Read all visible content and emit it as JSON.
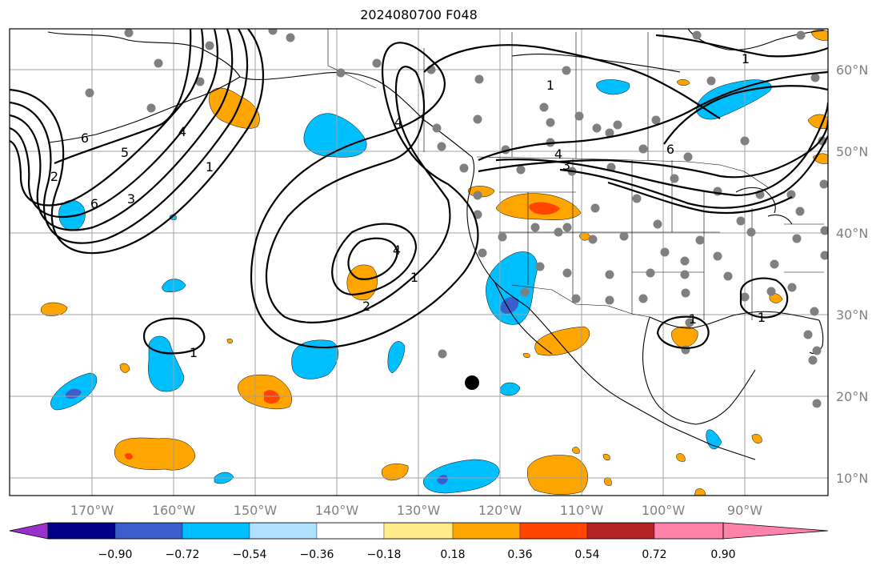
{
  "title": "2024080700 F048",
  "lat_labels": [
    "60°N",
    "50°N",
    "40°N",
    "30°N",
    "20°N",
    "10°N"
  ],
  "lon_labels": [
    "170°W",
    "160°W",
    "150°W",
    "140°W",
    "130°W",
    "120°W",
    "110°W",
    "100°W",
    "90°W"
  ],
  "colorbar": {
    "ticks": [
      "−0.90",
      "−0.72",
      "−0.54",
      "−0.36",
      "−0.18",
      "0.18",
      "0.36",
      "0.54",
      "0.72",
      "0.90"
    ],
    "colors": [
      "#9932cc",
      "#00008b",
      "#3a5fcd",
      "#00bfff",
      "#b0e2ff",
      "#ffffff",
      "#ffec8b",
      "#ffa500",
      "#ff4500",
      "#b22222",
      "#ff82ab"
    ]
  },
  "contour_labels": {
    "c1": "1",
    "c2": "1",
    "c3": "4",
    "c4": "1",
    "c5": "2",
    "c6": "4",
    "c7": "1",
    "c8": "1",
    "c9": "3",
    "c10": "4",
    "c11": "6",
    "c12": "1",
    "c13": "1",
    "c14": "5",
    "c15": "3",
    "c16": "6",
    "c17": "2",
    "c18": "6",
    "c19": "4"
  }
}
